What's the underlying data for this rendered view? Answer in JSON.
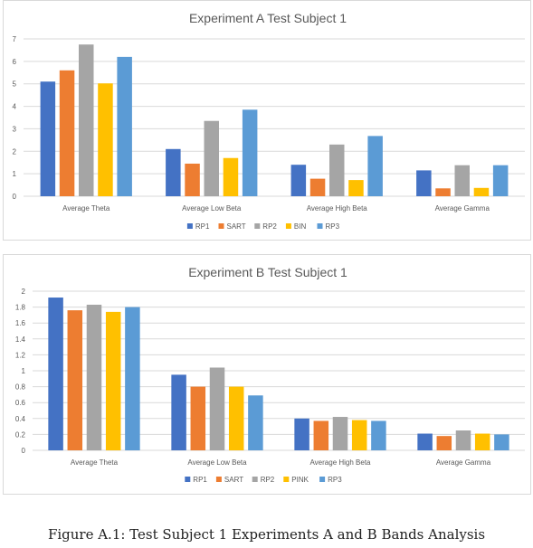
{
  "colors": {
    "RP1": "#4472c4",
    "SART": "#ed7d31",
    "RP2": "#a5a5a5",
    "BIN": "#ffc000",
    "PINK": "#ffc000",
    "RP3": "#5b9bd5",
    "grid": "#d9d9d9",
    "axis_text": "#595959",
    "title_text": "#595959"
  },
  "chart_data": [
    {
      "type": "bar",
      "title": "Experiment A Test Subject 1",
      "categories": [
        "Average Theta",
        "Average Low Beta",
        "Average High Beta",
        "Average Gamma"
      ],
      "yticks": [
        "0",
        "1",
        "2",
        "3",
        "4",
        "5",
        "6",
        "7"
      ],
      "ylim": [
        0,
        7
      ],
      "grid": true,
      "legend": "bottom",
      "series": [
        {
          "name": "RP1",
          "values": [
            5.1,
            2.1,
            1.4,
            1.15
          ]
        },
        {
          "name": "SART",
          "values": [
            5.6,
            1.45,
            0.78,
            0.35
          ]
        },
        {
          "name": "RP2",
          "values": [
            6.75,
            3.35,
            2.3,
            1.38
          ]
        },
        {
          "name": "BIN",
          "values": [
            5.02,
            1.7,
            0.72,
            0.37
          ]
        },
        {
          "name": "RP3",
          "values": [
            6.2,
            3.85,
            2.68,
            1.38
          ]
        }
      ]
    },
    {
      "type": "bar",
      "title": "Experiment B Test Subject 1",
      "categories": [
        "Average Theta",
        "Average Low Beta",
        "Average High Beta",
        "Average Gamma"
      ],
      "yticks": [
        "0",
        "0.2",
        "0.4",
        "0.6",
        "0.8",
        "1",
        "1.2",
        "1.4",
        "1.6",
        "1.8",
        "2"
      ],
      "ylim": [
        0,
        2
      ],
      "grid": true,
      "legend": "bottom",
      "series": [
        {
          "name": "RP1",
          "values": [
            1.92,
            0.95,
            0.4,
            0.21
          ]
        },
        {
          "name": "SART",
          "values": [
            1.76,
            0.8,
            0.37,
            0.18
          ]
        },
        {
          "name": "RP2",
          "values": [
            1.83,
            1.04,
            0.42,
            0.25
          ]
        },
        {
          "name": "PINK",
          "values": [
            1.74,
            0.8,
            0.38,
            0.21
          ]
        },
        {
          "name": "RP3",
          "values": [
            1.8,
            0.69,
            0.37,
            0.2
          ]
        }
      ]
    }
  ],
  "caption": "Figure A.1: Test Subject 1 Experiments A and B Bands Analysis"
}
